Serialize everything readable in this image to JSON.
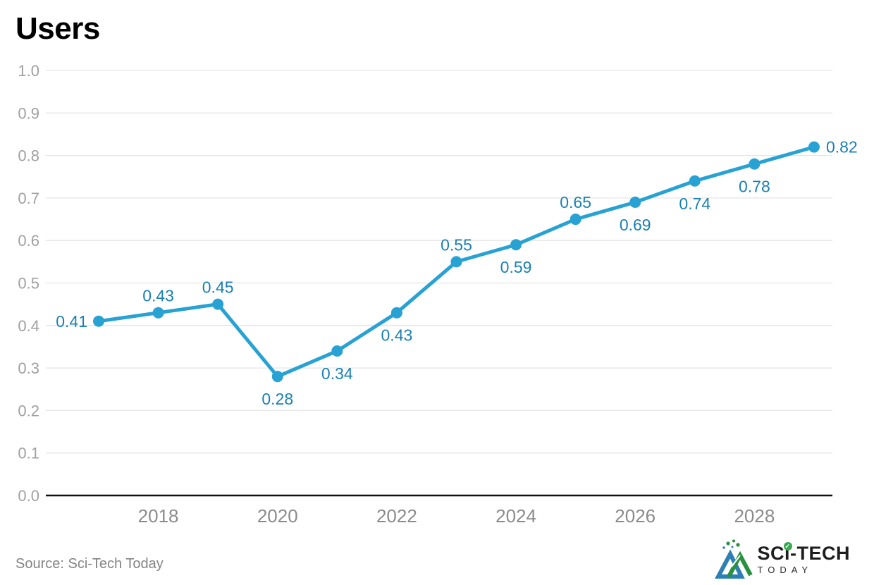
{
  "title": "Users",
  "source": "Source: Sci-Tech Today",
  "logo": {
    "title": "SCi-TECH",
    "subtitle": "TODAY",
    "check_glyph": "✓"
  },
  "colors": {
    "line": "#28a2d3",
    "marker": "#28a2d3",
    "data_label": "#1a80b2",
    "grid": "#e5e5e5",
    "axis": "#111111",
    "x_tick": "#8b8b8b",
    "y_tick": "#a0a0a0",
    "logo_blue": "#2e7fb5",
    "logo_green": "#28913f"
  },
  "chart_data": {
    "type": "line",
    "title": "Users",
    "xlabel": "",
    "ylabel": "",
    "x": [
      2017,
      2018,
      2019,
      2020,
      2021,
      2022,
      2023,
      2024,
      2025,
      2026,
      2027,
      2028,
      2029
    ],
    "values": [
      0.41,
      0.43,
      0.45,
      0.28,
      0.34,
      0.43,
      0.55,
      0.59,
      0.65,
      0.69,
      0.74,
      0.78,
      0.82
    ],
    "data_labels": [
      "0.41",
      "0.43",
      "0.45",
      "0.28",
      "0.34",
      "0.43",
      "0.55",
      "0.59",
      "0.65",
      "0.69",
      "0.74",
      "0.78",
      "0.82"
    ],
    "data_label_positions": [
      "left",
      "above",
      "above",
      "below",
      "below",
      "below",
      "above",
      "below",
      "above",
      "below",
      "below",
      "below",
      "right"
    ],
    "x_axis_ticks": [
      "2018",
      "2020",
      "2022",
      "2024",
      "2026",
      "2028"
    ],
    "y_axis_ticks": [
      "0.0",
      "0.1",
      "0.2",
      "0.3",
      "0.4",
      "0.5",
      "0.6",
      "0.7",
      "0.8",
      "0.9",
      "1.0"
    ],
    "ylim": [
      0,
      1
    ],
    "ytick_step": 0.1,
    "grid": "horizontal",
    "legend": "none",
    "marker": "circle"
  }
}
